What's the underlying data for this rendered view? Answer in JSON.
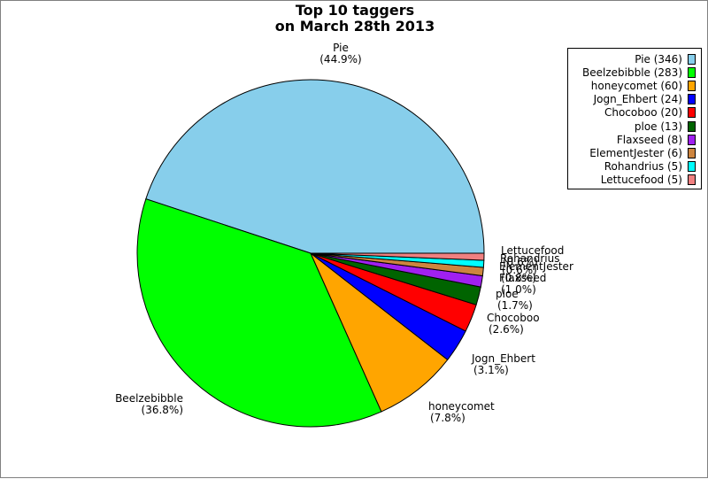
{
  "chart_data": {
    "type": "pie",
    "title": [
      "Top 10 taggers",
      "on March 28th 2013"
    ],
    "slices": [
      {
        "name": "Pie",
        "value": 346,
        "percent": "44.9%",
        "color": "#87ceeb"
      },
      {
        "name": "Beelzebibble",
        "value": 283,
        "percent": "36.8%",
        "color": "#00ff00"
      },
      {
        "name": "honeycomet",
        "value": 60,
        "percent": "7.8%",
        "color": "#ffa500"
      },
      {
        "name": "Jogn_Ehbert",
        "value": 24,
        "percent": "3.1%",
        "color": "#0000ff"
      },
      {
        "name": "Chocoboo",
        "value": 20,
        "percent": "2.6%",
        "color": "#ff0000"
      },
      {
        "name": "ploe",
        "value": 13,
        "percent": "1.7%",
        "color": "#006400"
      },
      {
        "name": "Flaxseed",
        "value": 8,
        "percent": "1.0%",
        "color": "#a020f0"
      },
      {
        "name": "ElementJester",
        "value": 6,
        "percent": "0.8%",
        "color": "#cd853f"
      },
      {
        "name": "Rohandrius",
        "value": 5,
        "percent": "0.6%",
        "color": "#00ffff"
      },
      {
        "name": "Lettucefood",
        "value": 5,
        "percent": "0.6%",
        "color": "#f08080"
      }
    ],
    "legend_entries": [
      "Pie (346)",
      "Beelzebibble (283)",
      "honeycomet (60)",
      "Jogn_Ehbert (24)",
      "Chocoboo (20)",
      "ploe (13)",
      "Flaxseed (8)",
      "ElementJester (6)",
      "Rohandrius (5)",
      "Lettucefood (5)"
    ],
    "legend_position": "top-right"
  }
}
